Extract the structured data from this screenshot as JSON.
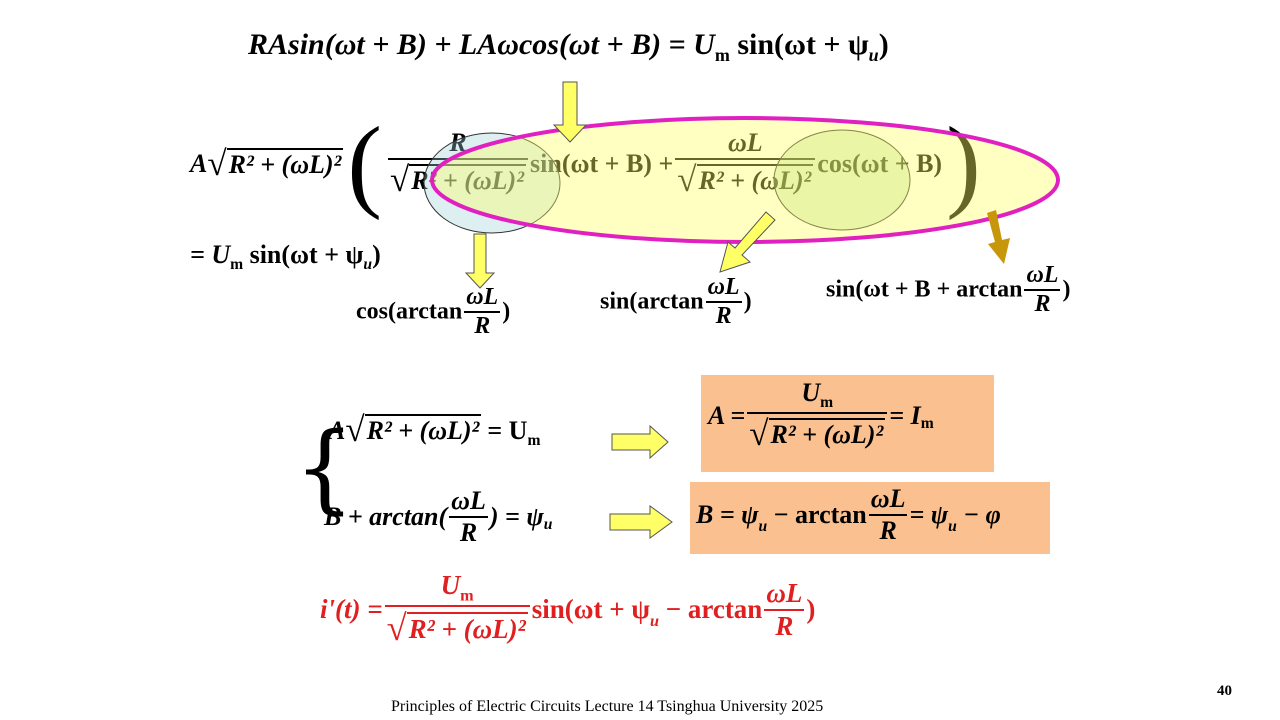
{
  "eq_top": {
    "lhs": "RAsin(ωt + B) + LAωcos(ωt + B) = ",
    "um": "U",
    "um_sub": "m",
    "rhs": " sin(ωt + ψ",
    "psi_sub": "u",
    "close": ")"
  },
  "eq_expand": {
    "a": "A",
    "rad_content": "R² + (ωL)²",
    "frac1_num": "R",
    "frac1_den": "R² + (ωL)²",
    "term1": "sin(ωt + B) +",
    "frac2_num": "ωL",
    "frac2_den": "R² + (ωL)²",
    "term2": "cos(ωt + B)"
  },
  "eq_rhs2": {
    "text": "= U",
    "sub": "m",
    "rest": " sin(ωt + ψ",
    "psi_sub": "u",
    "close": ")"
  },
  "anno_cos": {
    "prefix": "cos(arctan",
    "num": "ωL",
    "den": "R",
    "suffix": ")"
  },
  "anno_sin": {
    "prefix": "sin(arctan",
    "num": "ωL",
    "den": "R",
    "suffix": ")"
  },
  "anno_combined": {
    "prefix": "sin(ωt + B + arctan",
    "num": "ωL",
    "den": "R",
    "suffix": ")"
  },
  "system": {
    "eq1_a": "A",
    "eq1_rad": "R² + (ωL)²",
    "eq1_rhs": "= U",
    "eq1_sub": "m",
    "eq2_prefix": "B + arctan(",
    "eq2_num": "ωL",
    "eq2_den": "R",
    "eq2_rhs": ") = ψ",
    "eq2_sub": "u"
  },
  "result_a": {
    "lhs": "A =",
    "num": "U",
    "num_sub": "m",
    "den": "R² + (ωL)²",
    "rhs": "= I",
    "rhs_sub": "m"
  },
  "result_b": {
    "lhs": "B = ψ",
    "lhs_sub": "u",
    "mid": " − arctan",
    "num": "ωL",
    "den": "R",
    "rhs": "= ψ",
    "rhs_sub": "u",
    "tail": " − φ"
  },
  "final": {
    "lhs": "i'(t) =",
    "num": "U",
    "num_sub": "m",
    "den": "R² + (ωL)²",
    "mid": "sin(ωt + ψ",
    "mid_sub": "u",
    "mid2": " − arctan",
    "frac_num": "ωL",
    "frac_den": "R",
    "close": ")"
  },
  "footer": "Principles of Electric Circuits Lecture 14 Tsinghua University  2025",
  "page_number": "40",
  "colors": {
    "highlight_box": "#fac090",
    "ellipse_fill": "#ffff99",
    "ellipse_stroke": "#e020c0",
    "arrow_yellow": "#ffff66",
    "arrow_gold": "#c8960a",
    "final_red": "#e02020"
  }
}
